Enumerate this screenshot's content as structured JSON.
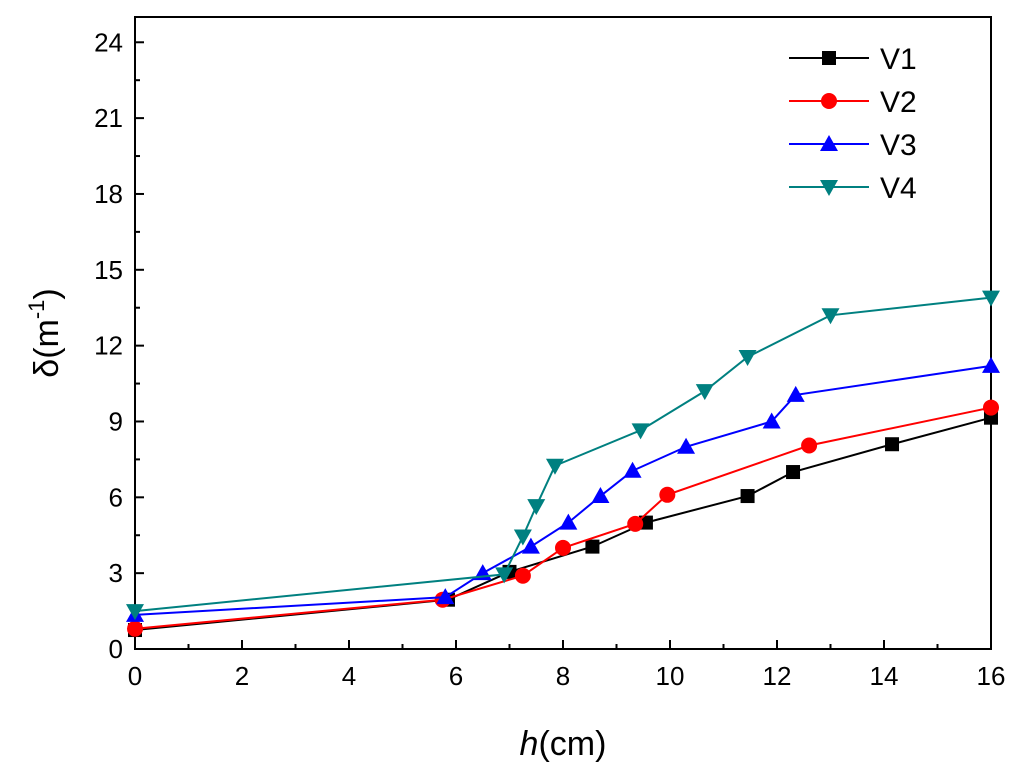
{
  "chart_data": {
    "type": "line",
    "xlabel_italic": "h",
    "xlabel_rest": "(cm)",
    "ylabel_main": "δ(m",
    "ylabel_sup": "-1",
    "ylabel_close": ")",
    "xlim": [
      0,
      16
    ],
    "ylim": [
      0,
      25
    ],
    "xticks": [
      0,
      2,
      4,
      6,
      8,
      10,
      12,
      14,
      16
    ],
    "yticks": [
      0,
      3,
      6,
      9,
      12,
      15,
      18,
      21,
      24
    ],
    "grid": false,
    "legend_position": "top-right",
    "series": [
      {
        "name": "V1",
        "color": "#000000",
        "marker": "square",
        "x": [
          0,
          5.85,
          7.0,
          8.55,
          9.55,
          11.45,
          12.3,
          14.15,
          16.0
        ],
        "y": [
          0.75,
          1.95,
          3.05,
          4.05,
          5.0,
          6.05,
          7.0,
          8.1,
          9.15
        ]
      },
      {
        "name": "V2",
        "color": "#ff0000",
        "marker": "circle",
        "x": [
          0,
          5.75,
          7.25,
          8.0,
          9.35,
          9.95,
          12.6,
          16.0
        ],
        "y": [
          0.8,
          1.95,
          2.9,
          4.0,
          4.95,
          6.1,
          8.05,
          9.55
        ]
      },
      {
        "name": "V3",
        "color": "#0000ff",
        "marker": "triangle-up",
        "x": [
          0,
          5.8,
          6.5,
          7.4,
          8.1,
          8.7,
          9.3,
          10.3,
          11.9,
          12.35,
          16.0
        ],
        "y": [
          1.35,
          2.05,
          3.0,
          4.05,
          5.0,
          6.05,
          7.05,
          8.0,
          9.0,
          10.05,
          11.2
        ]
      },
      {
        "name": "V4",
        "color": "#008080",
        "marker": "triangle-down",
        "x": [
          0,
          6.9,
          7.25,
          7.5,
          7.85,
          9.45,
          10.65,
          11.45,
          13.0,
          16.0
        ],
        "y": [
          1.5,
          2.95,
          4.45,
          5.65,
          7.25,
          8.65,
          10.2,
          11.55,
          13.2,
          13.9
        ]
      }
    ]
  }
}
